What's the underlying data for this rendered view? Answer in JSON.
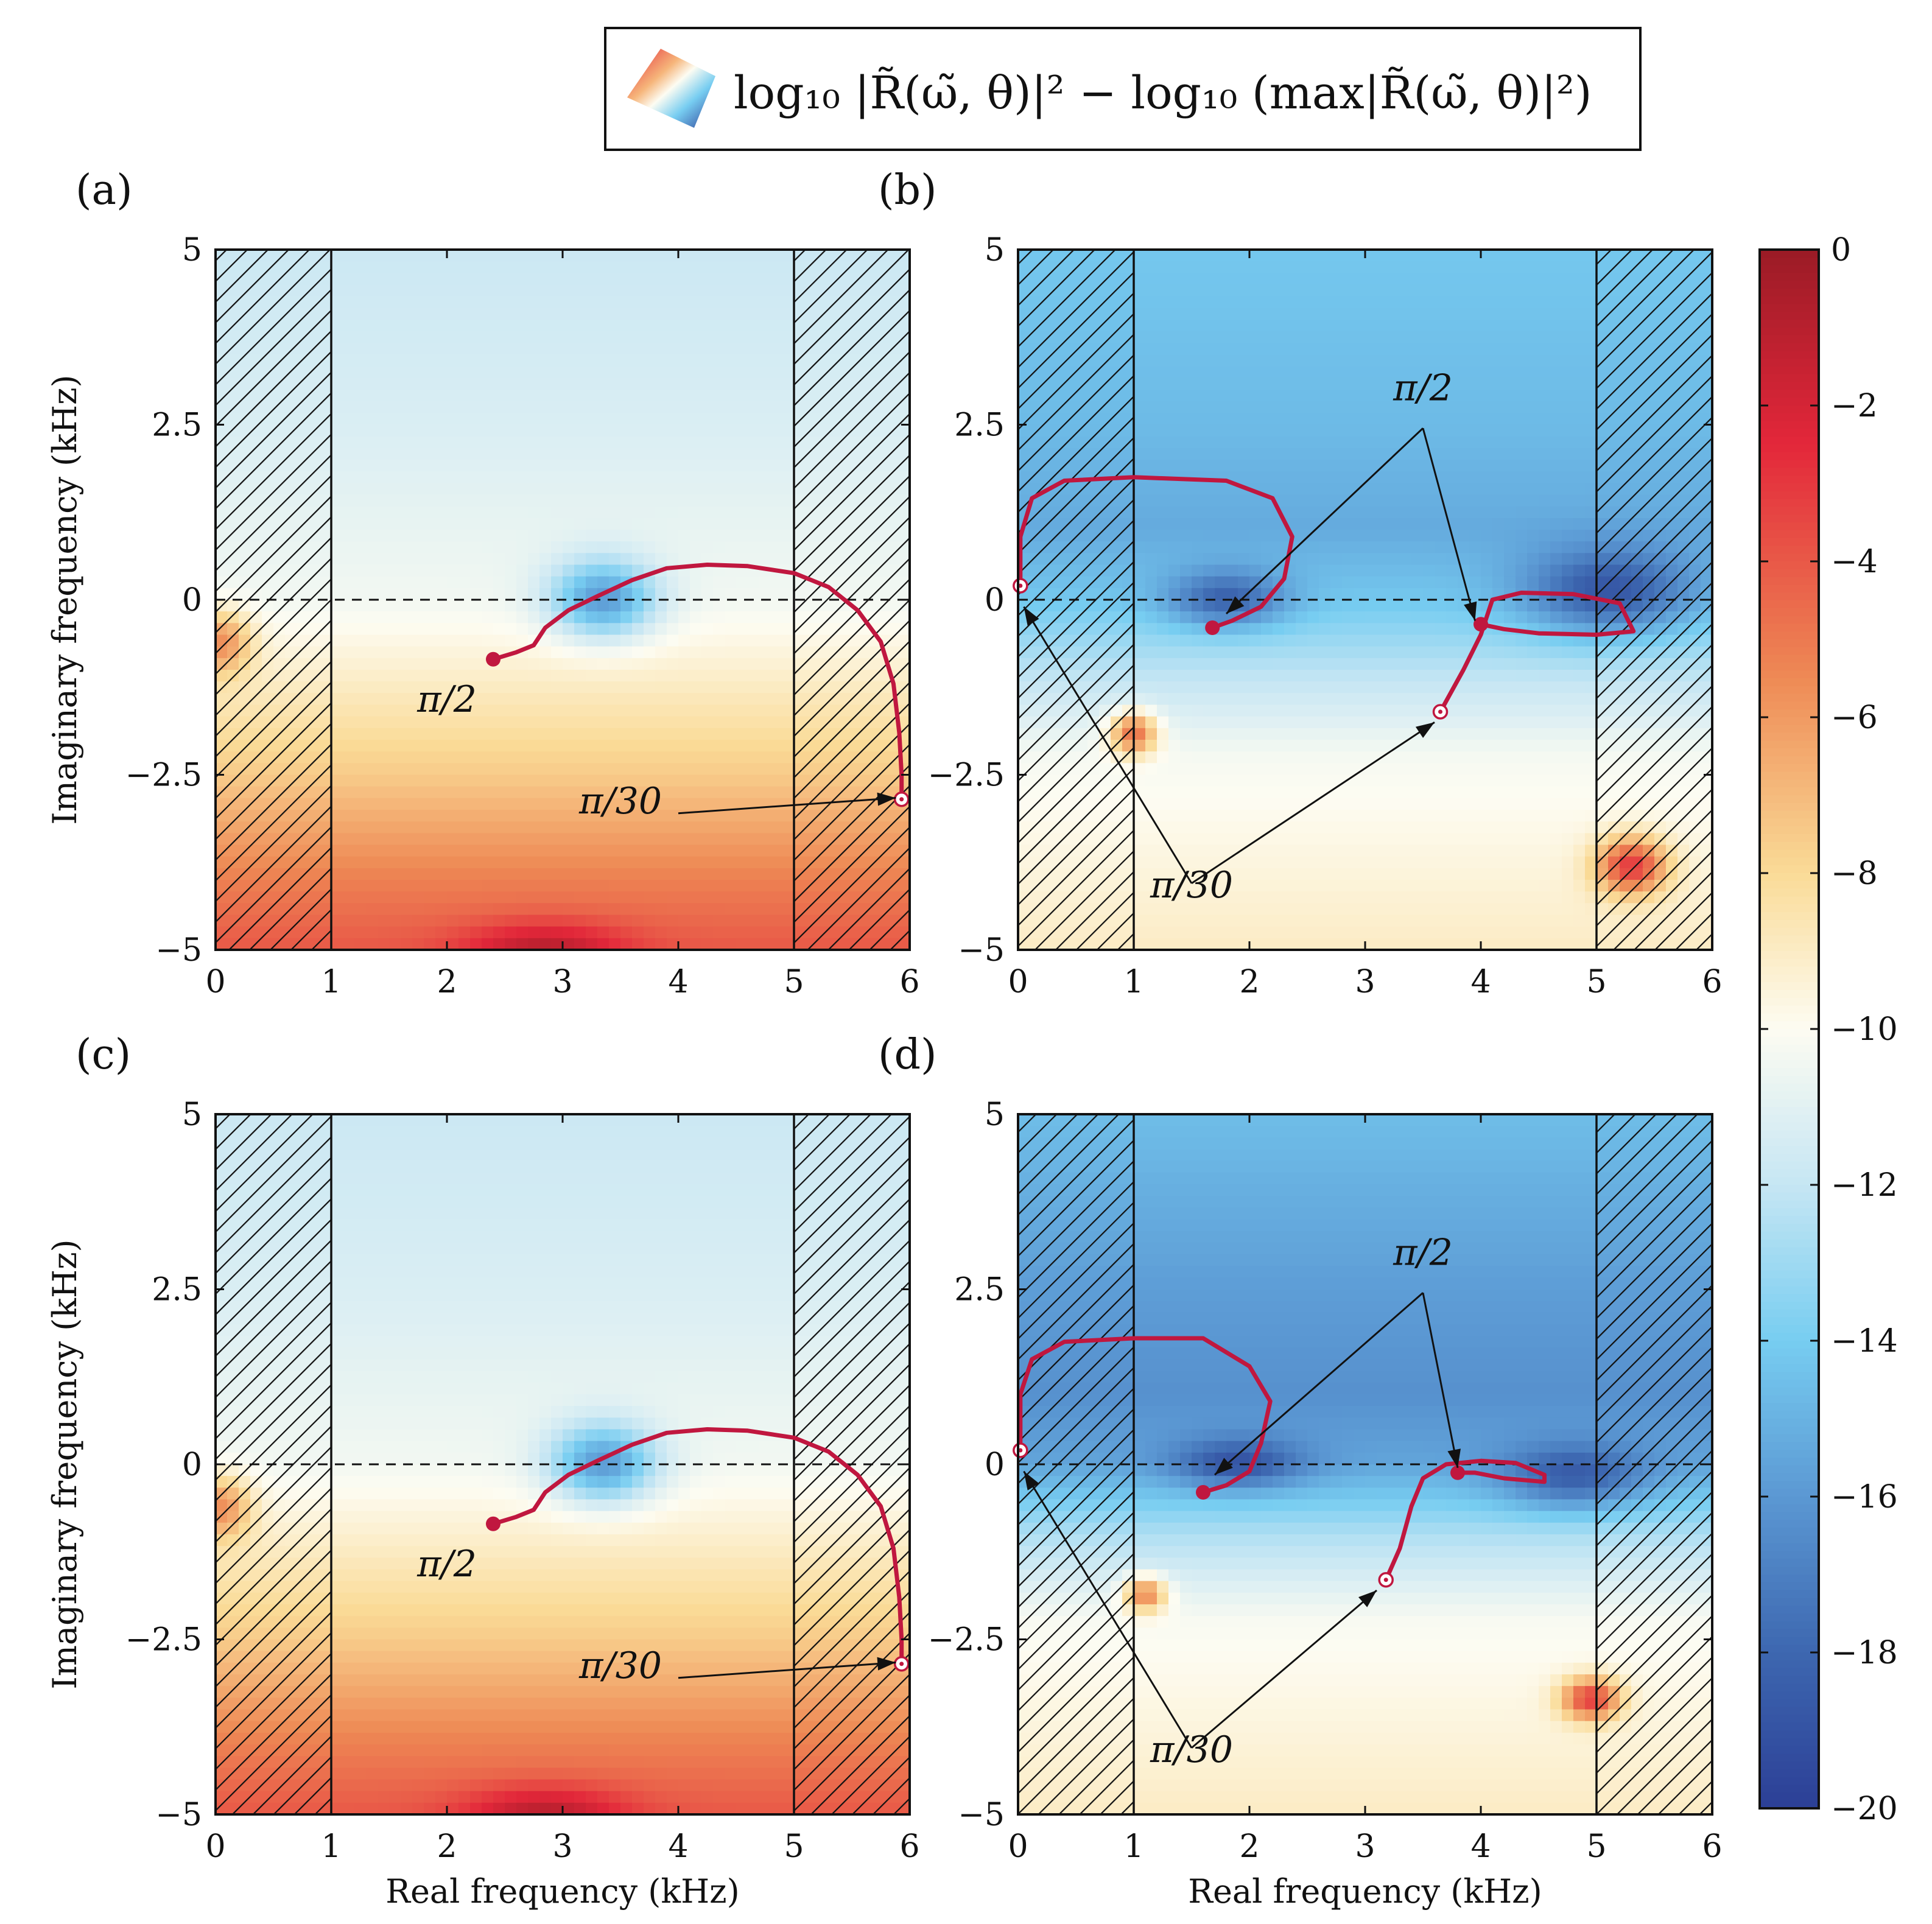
{
  "legend": {
    "math_text": "log₁₀ |R̃(ω̃, θ)|² − log₁₀ (max|R̃(ω̃, θ)|²)"
  },
  "colorbar": {
    "min": -20,
    "max": 0,
    "ticks": [
      0,
      -2,
      -4,
      -6,
      -8,
      -10,
      -12,
      -14,
      -16,
      -18,
      -20
    ],
    "tick_labels": [
      "0",
      "−2",
      "−4",
      "−6",
      "−8",
      "−10",
      "−12",
      "−14",
      "−16",
      "−18",
      "−20"
    ],
    "colormap": [
      {
        "v": 0,
        "color": "#9b1b26"
      },
      {
        "v": -2.5,
        "color": "#e3273a"
      },
      {
        "v": -5.5,
        "color": "#ee8a55"
      },
      {
        "v": -8,
        "color": "#fadb97"
      },
      {
        "v": -10,
        "color": "#fdfcf2"
      },
      {
        "v": -12,
        "color": "#c6e6f3"
      },
      {
        "v": -14,
        "color": "#77cdf1"
      },
      {
        "v": -16,
        "color": "#5b98d3"
      },
      {
        "v": -18,
        "color": "#3d67b0"
      },
      {
        "v": -20,
        "color": "#2c3f96"
      }
    ]
  },
  "chart_data": [
    {
      "type": "heatmap",
      "panel_label": "(a)",
      "xlabel": "",
      "ylabel": "Imaginary frequency (kHz)",
      "xlim": [
        0,
        6
      ],
      "ylim": [
        -5,
        5
      ],
      "x_ticks": [
        0,
        1,
        2,
        3,
        4,
        5,
        6
      ],
      "x_tick_labels": [
        "0",
        "1",
        "2",
        "3",
        "4",
        "5",
        "6"
      ],
      "y_ticks": [
        5,
        2.5,
        0,
        -2.5,
        -5
      ],
      "y_tick_labels": [
        "5",
        "2.5",
        "0",
        "−2.5",
        "−5"
      ],
      "hatched_regions": [
        [
          0,
          1
        ],
        [
          5,
          6
        ]
      ],
      "reference_line": {
        "y": 0,
        "style": "dashed"
      },
      "field": {
        "base": [
          {
            "y": 5,
            "v": -11.8
          },
          {
            "y": 2.5,
            "v": -11.3
          },
          {
            "y": 0,
            "v": -10.4
          },
          {
            "y": -1.2,
            "v": -9
          },
          {
            "y": -2.5,
            "v": -7.5
          },
          {
            "y": -4,
            "v": -5.2
          },
          {
            "y": -5,
            "v": -4
          }
        ],
        "features": [
          {
            "x": 3.35,
            "y": 0,
            "amp": -5.5,
            "sx": 0.45,
            "sy": 0.55
          },
          {
            "x": 2.85,
            "y": -5,
            "amp": 3,
            "sx": 0.7,
            "sy": 0.4
          },
          {
            "x": 0.05,
            "y": -0.6,
            "amp": 4,
            "sx": 0.25,
            "sy": 0.45
          }
        ]
      },
      "trajectory": {
        "points": [
          [
            2.4,
            -0.85
          ],
          [
            2.6,
            -0.75
          ],
          [
            2.75,
            -0.65
          ],
          [
            2.85,
            -0.4
          ],
          [
            3.05,
            -0.15
          ],
          [
            3.3,
            0.05
          ],
          [
            3.6,
            0.28
          ],
          [
            3.9,
            0.45
          ],
          [
            4.25,
            0.5
          ],
          [
            4.6,
            0.48
          ],
          [
            5.0,
            0.38
          ],
          [
            5.3,
            0.18
          ],
          [
            5.55,
            -0.15
          ],
          [
            5.75,
            -0.6
          ],
          [
            5.86,
            -1.2
          ],
          [
            5.91,
            -1.9
          ],
          [
            5.93,
            -2.5
          ],
          [
            5.93,
            -2.85
          ]
        ],
        "start_marker": "filled",
        "end_marker": "open"
      },
      "annotations": [
        {
          "text": "π/2",
          "x": 2.0,
          "y": -1.6,
          "arrows_to": []
        },
        {
          "text": "π/30",
          "x": 3.5,
          "y": -3.05,
          "arrow_from": [
            4.0,
            -3.05
          ],
          "arrows_to": [
            [
              5.88,
              -2.83
            ]
          ]
        }
      ]
    },
    {
      "type": "heatmap",
      "panel_label": "(b)",
      "xlabel": "",
      "ylabel": "",
      "xlim": [
        0,
        6
      ],
      "ylim": [
        -5,
        5
      ],
      "x_ticks": [
        0,
        1,
        2,
        3,
        4,
        5,
        6
      ],
      "x_tick_labels": [
        "0",
        "1",
        "2",
        "3",
        "4",
        "5",
        "6"
      ],
      "y_ticks": [
        5,
        2.5,
        0,
        -2.5,
        -5
      ],
      "y_tick_labels": [
        "5",
        "2.5",
        "0",
        "−2.5",
        "−5"
      ],
      "hatched_regions": [
        [
          0,
          1
        ],
        [
          5,
          6
        ]
      ],
      "reference_line": {
        "y": 0,
        "style": "dashed"
      },
      "field": {
        "base": [
          {
            "y": 5,
            "v": -14.2
          },
          {
            "y": 2.5,
            "v": -14.7
          },
          {
            "y": 1,
            "v": -15.3
          },
          {
            "y": 0,
            "v": -14.2
          },
          {
            "y": -1,
            "v": -12.3
          },
          {
            "y": -2.2,
            "v": -10.3
          },
          {
            "y": -5,
            "v": -9
          }
        ],
        "features": [
          {
            "x": 1.8,
            "y": 0,
            "amp": -4,
            "sx": 0.5,
            "sy": 0.4
          },
          {
            "x": 5.1,
            "y": 0.1,
            "amp": -4.5,
            "sx": 0.7,
            "sy": 0.6
          },
          {
            "x": 1.0,
            "y": -1.9,
            "amp": 6,
            "sx": 0.2,
            "sy": 0.3
          },
          {
            "x": 5.3,
            "y": -3.8,
            "amp": 6.5,
            "sx": 0.3,
            "sy": 0.4
          }
        ]
      },
      "trajectory": {
        "points": [
          [
            1.68,
            -0.4
          ],
          [
            1.85,
            -0.3
          ],
          [
            2.1,
            -0.1
          ],
          [
            2.3,
            0.3
          ],
          [
            2.37,
            0.9
          ],
          [
            2.2,
            1.45
          ],
          [
            1.8,
            1.7
          ],
          [
            1.0,
            1.75
          ],
          [
            0.4,
            1.7
          ],
          [
            0.12,
            1.45
          ],
          [
            0.02,
            0.9
          ],
          [
            0.02,
            0.2
          ]
        ],
        "start_marker": "filled",
        "end_marker": "open",
        "extra_paths": [
          {
            "points": [
              [
                3.65,
                -1.6
              ],
              [
                3.85,
                -1.0
              ],
              [
                4.0,
                -0.5
              ],
              [
                4.1,
                0.0
              ],
              [
                4.35,
                0.1
              ],
              [
                4.8,
                0.08
              ],
              [
                5.2,
                -0.05
              ],
              [
                5.32,
                -0.45
              ],
              [
                5.0,
                -0.5
              ],
              [
                4.5,
                -0.48
              ],
              [
                4.2,
                -0.42
              ],
              [
                4.0,
                -0.35
              ]
            ],
            "start_marker": "open",
            "end_marker": "filled"
          }
        ]
      },
      "annotations": [
        {
          "text": "π/2",
          "x": 3.5,
          "y": 2.85,
          "arrow_from": [
            3.5,
            2.45
          ],
          "arrows_to": [
            [
              1.8,
              -0.2
            ],
            [
              3.95,
              -0.3
            ]
          ]
        },
        {
          "text": "π/30",
          "x": 1.5,
          "y": -4.25,
          "arrow_from": [
            1.5,
            -4.05
          ],
          "arrows_to": [
            [
              0.05,
              -0.1
            ],
            [
              3.6,
              -1.75
            ]
          ]
        }
      ]
    },
    {
      "type": "heatmap",
      "panel_label": "(c)",
      "xlabel": "Real frequency (kHz)",
      "ylabel": "Imaginary frequency (kHz)",
      "xlim": [
        0,
        6
      ],
      "ylim": [
        -5,
        5
      ],
      "x_ticks": [
        0,
        1,
        2,
        3,
        4,
        5,
        6
      ],
      "x_tick_labels": [
        "0",
        "1",
        "2",
        "3",
        "4",
        "5",
        "6"
      ],
      "y_ticks": [
        5,
        2.5,
        0,
        -2.5,
        -5
      ],
      "y_tick_labels": [
        "5",
        "2.5",
        "0",
        "−2.5",
        "−5"
      ],
      "hatched_regions": [
        [
          0,
          1
        ],
        [
          5,
          6
        ]
      ],
      "reference_line": {
        "y": 0,
        "style": "dashed"
      },
      "field": {
        "base": [
          {
            "y": 5,
            "v": -11.8
          },
          {
            "y": 2.5,
            "v": -11.3
          },
          {
            "y": 0,
            "v": -10.4
          },
          {
            "y": -1.2,
            "v": -9
          },
          {
            "y": -2.5,
            "v": -7.5
          },
          {
            "y": -4,
            "v": -5.2
          },
          {
            "y": -5,
            "v": -4
          }
        ],
        "features": [
          {
            "x": 3.35,
            "y": 0,
            "amp": -5.5,
            "sx": 0.45,
            "sy": 0.55
          },
          {
            "x": 2.85,
            "y": -5,
            "amp": 3,
            "sx": 0.7,
            "sy": 0.4
          },
          {
            "x": 0.05,
            "y": -0.6,
            "amp": 4,
            "sx": 0.25,
            "sy": 0.45
          }
        ]
      },
      "trajectory": {
        "points": [
          [
            2.4,
            -0.85
          ],
          [
            2.6,
            -0.75
          ],
          [
            2.75,
            -0.65
          ],
          [
            2.85,
            -0.4
          ],
          [
            3.05,
            -0.15
          ],
          [
            3.3,
            0.05
          ],
          [
            3.6,
            0.28
          ],
          [
            3.9,
            0.45
          ],
          [
            4.25,
            0.5
          ],
          [
            4.6,
            0.48
          ],
          [
            5.0,
            0.38
          ],
          [
            5.3,
            0.18
          ],
          [
            5.55,
            -0.15
          ],
          [
            5.75,
            -0.6
          ],
          [
            5.86,
            -1.2
          ],
          [
            5.91,
            -1.9
          ],
          [
            5.93,
            -2.5
          ],
          [
            5.93,
            -2.85
          ]
        ],
        "start_marker": "filled",
        "end_marker": "open"
      },
      "annotations": [
        {
          "text": "π/2",
          "x": 2.0,
          "y": -1.6,
          "arrows_to": []
        },
        {
          "text": "π/30",
          "x": 3.5,
          "y": -3.05,
          "arrow_from": [
            4.0,
            -3.05
          ],
          "arrows_to": [
            [
              5.88,
              -2.83
            ]
          ]
        }
      ]
    },
    {
      "type": "heatmap",
      "panel_label": "(d)",
      "xlabel": "Real frequency (kHz)",
      "ylabel": "",
      "xlim": [
        0,
        6
      ],
      "ylim": [
        -5,
        5
      ],
      "x_ticks": [
        0,
        1,
        2,
        3,
        4,
        5,
        6
      ],
      "x_tick_labels": [
        "0",
        "1",
        "2",
        "3",
        "4",
        "5",
        "6"
      ],
      "y_ticks": [
        5,
        2.5,
        0,
        -2.5,
        -5
      ],
      "y_tick_labels": [
        "5",
        "2.5",
        "0",
        "−2.5",
        "−5"
      ],
      "hatched_regions": [
        [
          0,
          1
        ],
        [
          5,
          6
        ]
      ],
      "reference_line": {
        "y": 0,
        "style": "dashed"
      },
      "field": {
        "base": [
          {
            "y": 5,
            "v": -14.6
          },
          {
            "y": 2.5,
            "v": -15.8
          },
          {
            "y": 1,
            "v": -16.3
          },
          {
            "y": 0,
            "v": -15.5
          },
          {
            "y": -1,
            "v": -12.6
          },
          {
            "y": -2.2,
            "v": -10.2
          },
          {
            "y": -5,
            "v": -9
          }
        ],
        "features": [
          {
            "x": 1.9,
            "y": 0,
            "amp": -3.5,
            "sx": 0.55,
            "sy": 0.35
          },
          {
            "x": 4.8,
            "y": -0.2,
            "amp": -3.5,
            "sx": 0.6,
            "sy": 0.45
          },
          {
            "x": 1.1,
            "y": -1.85,
            "amp": 5.5,
            "sx": 0.18,
            "sy": 0.25
          },
          {
            "x": 4.95,
            "y": -3.35,
            "amp": 6.5,
            "sx": 0.25,
            "sy": 0.3
          }
        ]
      },
      "trajectory": {
        "points": [
          [
            1.6,
            -0.4
          ],
          [
            1.8,
            -0.3
          ],
          [
            2.0,
            -0.1
          ],
          [
            2.1,
            0.3
          ],
          [
            2.18,
            0.9
          ],
          [
            2.0,
            1.4
          ],
          [
            1.6,
            1.8
          ],
          [
            1.0,
            1.8
          ],
          [
            0.4,
            1.75
          ],
          [
            0.12,
            1.5
          ],
          [
            0.02,
            1.0
          ],
          [
            0.02,
            0.2
          ]
        ],
        "start_marker": "filled",
        "end_marker": "open",
        "extra_paths": [
          {
            "points": [
              [
                3.18,
                -1.65
              ],
              [
                3.3,
                -1.2
              ],
              [
                3.4,
                -0.6
              ],
              [
                3.5,
                -0.2
              ],
              [
                3.7,
                0.0
              ],
              [
                4.0,
                0.05
              ],
              [
                4.3,
                0.02
              ],
              [
                4.55,
                -0.15
              ],
              [
                4.55,
                -0.25
              ],
              [
                4.2,
                -0.2
              ],
              [
                3.95,
                -0.12
              ],
              [
                3.8,
                -0.12
              ]
            ],
            "start_marker": "open",
            "end_marker": "filled"
          }
        ]
      },
      "annotations": [
        {
          "text": "π/2",
          "x": 3.5,
          "y": 2.85,
          "arrow_from": [
            3.5,
            2.45
          ],
          "arrows_to": [
            [
              1.7,
              -0.15
            ],
            [
              3.8,
              -0.05
            ]
          ]
        },
        {
          "text": "π/30",
          "x": 1.5,
          "y": -4.25,
          "arrow_from": [
            1.5,
            -4.05
          ],
          "arrows_to": [
            [
              0.05,
              -0.1
            ],
            [
              3.1,
              -1.8
            ]
          ]
        }
      ]
    }
  ]
}
